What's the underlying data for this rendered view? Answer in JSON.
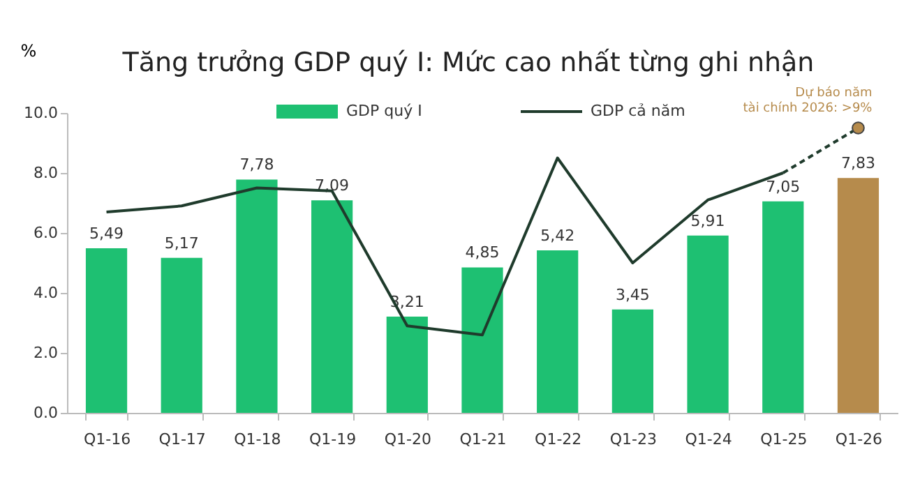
{
  "chart_data": {
    "type": "bar",
    "title": "Tăng trưởng GDP quý I: Mức cao nhất từng ghi nhận",
    "ylabel": "%",
    "categories": [
      "Q1-16",
      "Q1-17",
      "Q1-18",
      "Q1-19",
      "Q1-20",
      "Q1-21",
      "Q1-22",
      "Q1-23",
      "Q1-24",
      "Q1-25",
      "Q1-26"
    ],
    "series": [
      {
        "name": "GDP quý I",
        "color": "#1ec072",
        "colors": [
          "#1ec072",
          "#1ec072",
          "#1ec072",
          "#1ec072",
          "#1ec072",
          "#1ec072",
          "#1ec072",
          "#1ec072",
          "#1ec072",
          "#1ec072",
          "#b68b4c"
        ],
        "values": [
          5.49,
          5.17,
          7.78,
          7.09,
          3.21,
          4.85,
          5.42,
          3.45,
          5.91,
          7.05,
          7.83
        ],
        "value_labels": [
          "5,49",
          "5,17",
          "7,78",
          "7,09",
          "3,21",
          "4,85",
          "5,42",
          "3,45",
          "5,91",
          "7,05",
          "7,83"
        ]
      },
      {
        "name": "GDP cả năm",
        "type": "line",
        "color": "#1f3b2c",
        "line_style": "solid",
        "marker": "none",
        "values": [
          6.7,
          6.9,
          7.5,
          7.4,
          2.9,
          2.6,
          8.5,
          5.0,
          7.1,
          8.0,
          null
        ]
      },
      {
        "type": "line",
        "color": "#1f3b2c",
        "line_style": "dashed",
        "marker": "circle",
        "colors": [
          null,
          null,
          null,
          null,
          null,
          null,
          null,
          null,
          null,
          null,
          "#b68b4c"
        ],
        "values": [
          null,
          null,
          null,
          null,
          null,
          null,
          null,
          null,
          null,
          8.0,
          9.5
        ]
      }
    ],
    "ylim": [
      0,
      10
    ],
    "yticks": [
      {
        "value": 0,
        "label": "0.0"
      },
      {
        "value": 2,
        "label": "2.0"
      },
      {
        "value": 4,
        "label": "4.0"
      },
      {
        "value": 6,
        "label": "6.0"
      },
      {
        "value": 8,
        "label": "8.0"
      },
      {
        "value": 10,
        "label": "10.0"
      }
    ],
    "grid": false,
    "legend": "top",
    "annotations": [
      {
        "text": "Dự báo năm tài chính 2026: >9%",
        "x": "Q1-26",
        "y": 9.5
      }
    ]
  }
}
